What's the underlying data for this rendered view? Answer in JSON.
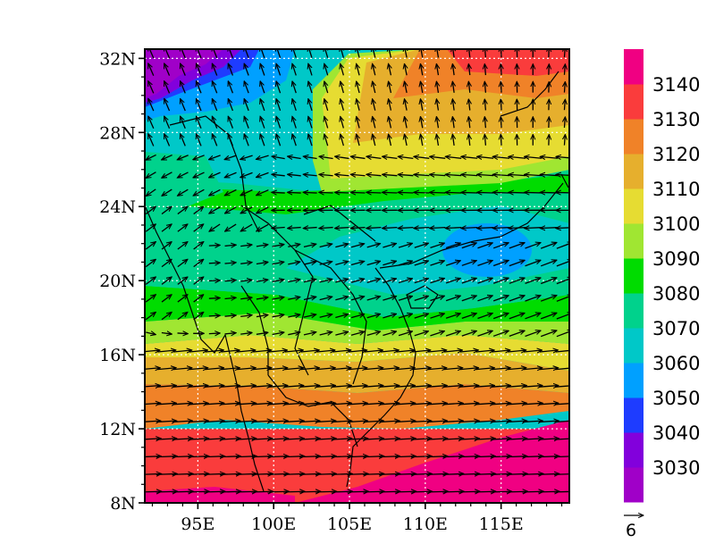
{
  "map": {
    "lat_ticks": [
      "8N",
      "12N",
      "16N",
      "20N",
      "24N",
      "28N",
      "32N"
    ],
    "lon_ticks": [
      "95E",
      "100E",
      "105E",
      "110E",
      "115E"
    ],
    "lon_range": [
      91.5,
      119.5
    ],
    "lat_range": [
      8,
      32.5
    ]
  },
  "colorbar": {
    "labels": [
      "3030",
      "3040",
      "3050",
      "3060",
      "3070",
      "3080",
      "3090",
      "3100",
      "3110",
      "3120",
      "3130",
      "3140"
    ],
    "colors": [
      "#a000c8",
      "#8200dc",
      "#1e3cff",
      "#00a0ff",
      "#00c8c8",
      "#00d28c",
      "#00dc00",
      "#a0e632",
      "#e6dc32",
      "#e6af2d",
      "#f08228",
      "#fa3c3c",
      "#f00082"
    ]
  },
  "reference_vector": {
    "label": "6"
  }
}
